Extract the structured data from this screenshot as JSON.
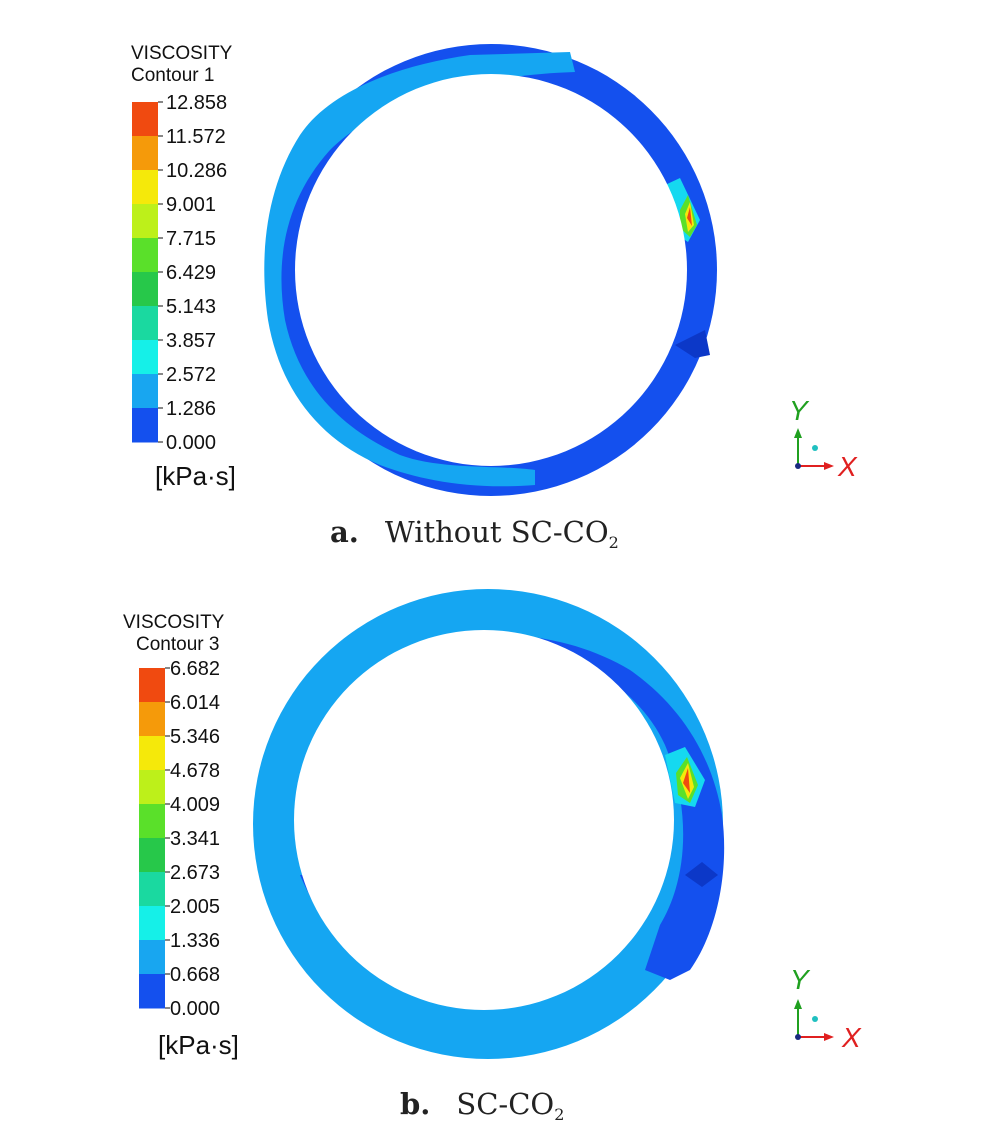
{
  "panels": [
    {
      "id": "a",
      "legend": {
        "title_line1": "VISCOSITY",
        "title_line2": "Contour 1",
        "ticks": [
          "12.858",
          "11.572",
          "10.286",
          "9.001",
          "7.715",
          "6.429",
          "5.143",
          "3.857",
          "2.572",
          "1.286",
          "0.000"
        ],
        "unit": "[kPa·s]"
      },
      "caption_letter": "a.",
      "caption_text": "Without SC-CO",
      "caption_sub": "2",
      "triad": {
        "y": "Y",
        "x": "X"
      }
    },
    {
      "id": "b",
      "legend": {
        "title_line1": "VISCOSITY",
        "title_line2": "Contour 3",
        "ticks": [
          "6.682",
          "6.014",
          "5.346",
          "4.678",
          "4.009",
          "3.341",
          "2.673",
          "2.005",
          "1.336",
          "0.668",
          "0.000"
        ],
        "unit": "[kPa·s]"
      },
      "caption_letter": "b.",
      "caption_text": "SC-CO",
      "caption_sub": "2",
      "triad": {
        "y": "Y",
        "x": "X"
      }
    }
  ],
  "colorbar_colors": [
    "#f04a10",
    "#f59a0a",
    "#f5e90a",
    "#bdf01a",
    "#5ae02a",
    "#27c84a",
    "#1ad9a0",
    "#15f0e8",
    "#18a6f0",
    "#1450ee"
  ],
  "colors": {
    "ring_dark": "#1450ee",
    "ring_light": "#15a6f2",
    "axis_x": "#e02020",
    "axis_y": "#20a020"
  }
}
